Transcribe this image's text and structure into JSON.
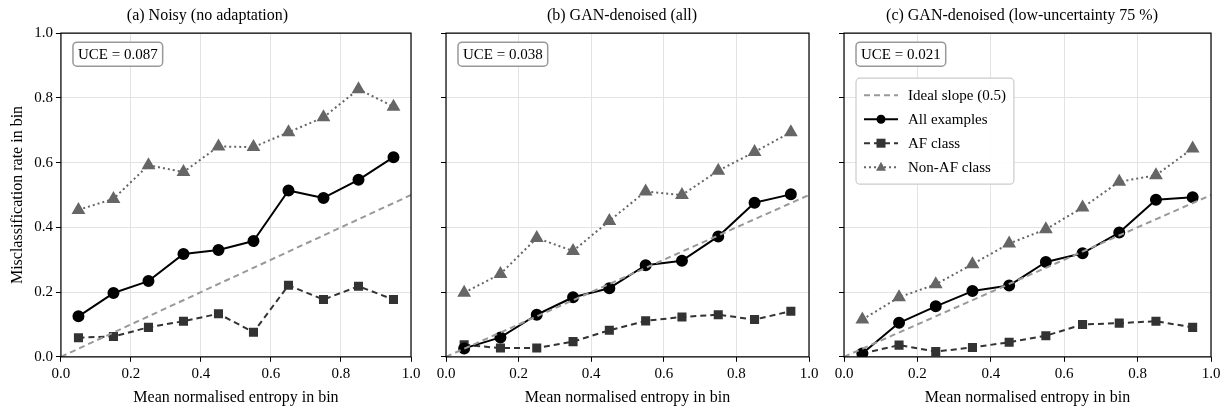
{
  "chart_data": [
    {
      "type": "line",
      "title": "(a) Noisy (no adaptation)",
      "xlabel": "Mean normalised entropy in bin",
      "ylabel": "Misclassification rate in bin",
      "annotations": [
        "UCE = 0.087"
      ],
      "series": [
        {
          "type": "line",
          "color": "#999999",
          "line_style": "dashed",
          "marker": "none",
          "x": [
            0,
            1
          ],
          "values": [
            0,
            0.5
          ]
        },
        {
          "color": "#000000",
          "line_style": "solid",
          "marker": "circle",
          "x": [
            0.05,
            0.15,
            0.25,
            0.35,
            0.45,
            0.55,
            0.65,
            0.75,
            0.85,
            0.95
          ],
          "values": [
            0.125,
            0.197,
            0.234,
            0.318,
            0.33,
            0.358,
            0.514,
            0.491,
            0.547,
            0.617
          ]
        },
        {
          "color": "#333333",
          "line_style": "dashed",
          "marker": "square",
          "x": [
            0.05,
            0.15,
            0.25,
            0.35,
            0.45,
            0.55,
            0.65,
            0.75,
            0.85,
            0.95
          ],
          "values": [
            0.059,
            0.063,
            0.091,
            0.11,
            0.133,
            0.076,
            0.221,
            0.177,
            0.218,
            0.177
          ]
        },
        {
          "color": "#666666",
          "line_style": "dotted",
          "marker": "triangle",
          "x": [
            0.05,
            0.15,
            0.25,
            0.35,
            0.45,
            0.55,
            0.65,
            0.75,
            0.85,
            0.95
          ],
          "values": [
            0.454,
            0.488,
            0.592,
            0.571,
            0.65,
            0.648,
            0.694,
            0.74,
            0.827,
            0.773
          ]
        }
      ],
      "xlim": [
        0,
        1
      ],
      "ylim": [
        0,
        1
      ],
      "xticks": [
        {
          "value": 0,
          "label": "0.0"
        },
        {
          "value": 0.2,
          "label": "0.2"
        },
        {
          "value": 0.4,
          "label": "0.4"
        },
        {
          "value": 0.6,
          "label": "0.6"
        },
        {
          "value": 0.8,
          "label": "0.8"
        },
        {
          "value": 1,
          "label": "1.0"
        }
      ],
      "yticks": [
        {
          "value": 0,
          "label": "0.0"
        },
        {
          "value": 0.2,
          "label": "0.2"
        },
        {
          "value": 0.4,
          "label": "0.4"
        },
        {
          "value": 0.6,
          "label": "0.6"
        },
        {
          "value": 0.8,
          "label": "0.8"
        },
        {
          "value": 1,
          "label": "1.0"
        }
      ],
      "grid": true
    },
    {
      "type": "line",
      "title": "(b) GAN-denoised (all)",
      "xlabel": "Mean normalised entropy in bin",
      "annotations": [
        "UCE = 0.038"
      ],
      "series": [
        {
          "type": "line",
          "color": "#999999",
          "line_style": "dashed",
          "marker": "none",
          "x": [
            0,
            1
          ],
          "values": [
            0,
            0.5
          ]
        },
        {
          "color": "#000000",
          "line_style": "solid",
          "marker": "circle",
          "x": [
            0.05,
            0.15,
            0.25,
            0.35,
            0.45,
            0.55,
            0.65,
            0.75,
            0.85,
            0.95
          ],
          "values": [
            0.026,
            0.06,
            0.13,
            0.184,
            0.212,
            0.283,
            0.297,
            0.372,
            0.476,
            0.502
          ]
        },
        {
          "color": "#333333",
          "line_style": "dashed",
          "marker": "square",
          "x": [
            0.05,
            0.15,
            0.25,
            0.35,
            0.45,
            0.55,
            0.65,
            0.75,
            0.85,
            0.95
          ],
          "values": [
            0.037,
            0.027,
            0.027,
            0.047,
            0.082,
            0.111,
            0.123,
            0.13,
            0.115,
            0.141
          ]
        },
        {
          "color": "#666666",
          "line_style": "dotted",
          "marker": "triangle",
          "x": [
            0.05,
            0.15,
            0.25,
            0.35,
            0.45,
            0.55,
            0.65,
            0.75,
            0.85,
            0.95
          ],
          "values": [
            0.198,
            0.256,
            0.367,
            0.327,
            0.42,
            0.511,
            0.5,
            0.575,
            0.633,
            0.694
          ]
        }
      ],
      "xlim": [
        0,
        1
      ],
      "ylim": [
        0,
        1
      ],
      "xticks": [
        {
          "value": 0,
          "label": "0.0"
        },
        {
          "value": 0.2,
          "label": "0.2"
        },
        {
          "value": 0.4,
          "label": "0.4"
        },
        {
          "value": 0.6,
          "label": "0.6"
        },
        {
          "value": 0.8,
          "label": "0.8"
        },
        {
          "value": 1,
          "label": "1.0"
        }
      ],
      "yticks": [
        {
          "value": 0,
          "label": null
        },
        {
          "value": 0.2,
          "label": null
        },
        {
          "value": 0.4,
          "label": null
        },
        {
          "value": 0.6,
          "label": null
        },
        {
          "value": 0.8,
          "label": null
        },
        {
          "value": 1,
          "label": null
        }
      ],
      "grid": true,
      "tick_labels": "x"
    },
    {
      "type": "line",
      "title": "(c) GAN-denoised (low-uncertainty 75 %)",
      "xlabel": "Mean normalised entropy in bin",
      "annotations": [
        "UCE = 0.021"
      ],
      "series": [
        {
          "name": "Ideal slope (0.5)",
          "type": "line",
          "color": "#999999",
          "line_style": "dashed",
          "marker": "none",
          "x": [
            0,
            1
          ],
          "values": [
            0,
            0.5
          ]
        },
        {
          "name": "All examples",
          "color": "#000000",
          "line_style": "solid",
          "marker": "circle",
          "x": [
            0.05,
            0.15,
            0.25,
            0.35,
            0.45,
            0.55,
            0.65,
            0.75,
            0.85,
            0.95
          ],
          "values": [
            0.01,
            0.105,
            0.156,
            0.203,
            0.22,
            0.293,
            0.32,
            0.384,
            0.485,
            0.493
          ]
        },
        {
          "name": "AF class",
          "color": "#333333",
          "line_style": "dashed",
          "marker": "square",
          "x": [
            0.05,
            0.15,
            0.25,
            0.35,
            0.45,
            0.55,
            0.65,
            0.75,
            0.85,
            0.95
          ],
          "values": [
            0.01,
            0.036,
            0.016,
            0.029,
            0.045,
            0.065,
            0.1,
            0.104,
            0.11,
            0.091
          ]
        },
        {
          "name": "Non-AF class",
          "color": "#666666",
          "line_style": "dotted",
          "marker": "triangle",
          "x": [
            0.05,
            0.15,
            0.25,
            0.35,
            0.45,
            0.55,
            0.65,
            0.75,
            0.85,
            0.95
          ],
          "values": [
            0.115,
            0.184,
            0.224,
            0.286,
            0.35,
            0.394,
            0.461,
            0.541,
            0.561,
            0.644
          ]
        }
      ],
      "xlim": [
        0,
        1
      ],
      "ylim": [
        0,
        1
      ],
      "xticks": [
        {
          "value": 0,
          "label": "0.0"
        },
        {
          "value": 0.2,
          "label": "0.2"
        },
        {
          "value": 0.4,
          "label": "0.4"
        },
        {
          "value": 0.6,
          "label": "0.6"
        },
        {
          "value": 0.8,
          "label": "0.8"
        },
        {
          "value": 1,
          "label": "1.0"
        }
      ],
      "yticks": [
        {
          "value": 0,
          "label": null
        },
        {
          "value": 0.2,
          "label": null
        },
        {
          "value": 0.4,
          "label": null
        },
        {
          "value": 0.6,
          "label": null
        },
        {
          "value": 0.8,
          "label": null
        },
        {
          "value": 1,
          "label": null
        }
      ],
      "grid": true,
      "tick_labels": "x",
      "legend": "top left"
    }
  ]
}
